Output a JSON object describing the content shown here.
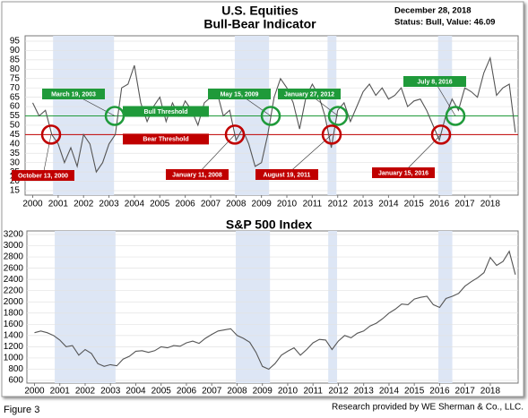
{
  "figure_label": "Figure 3",
  "credit": "Research provided by WE Sherman & Co., LLC.",
  "chart_data": [
    {
      "type": "line",
      "title": "U.S. Equities",
      "subtitle": "Bull-Bear Indicator",
      "date_text": "December 28, 2018",
      "status_text": "Status: Bull, Value: 46.09",
      "x": [
        2000,
        2000.25,
        2000.5,
        2000.75,
        2001,
        2001.25,
        2001.5,
        2001.75,
        2002,
        2002.25,
        2002.5,
        2002.75,
        2003,
        2003.25,
        2003.5,
        2003.75,
        2004,
        2004.25,
        2004.5,
        2004.75,
        2005,
        2005.25,
        2005.5,
        2005.75,
        2006,
        2006.25,
        2006.5,
        2006.75,
        2007,
        2007.25,
        2007.5,
        2007.75,
        2008,
        2008.25,
        2008.5,
        2008.75,
        2009,
        2009.25,
        2009.5,
        2009.75,
        2010,
        2010.25,
        2010.5,
        2010.75,
        2011,
        2011.25,
        2011.5,
        2011.75,
        2012,
        2012.25,
        2012.5,
        2012.75,
        2013,
        2013.25,
        2013.5,
        2013.75,
        2014,
        2014.25,
        2014.5,
        2014.75,
        2015,
        2015.25,
        2015.5,
        2015.75,
        2016,
        2016.25,
        2016.5,
        2016.75,
        2017,
        2017.25,
        2017.5,
        2017.75,
        2018,
        2018.25,
        2018.5,
        2018.75,
        2018.99
      ],
      "values": [
        62,
        55,
        58,
        45,
        40,
        30,
        38,
        28,
        45,
        40,
        25,
        30,
        40,
        45,
        70,
        72,
        82,
        62,
        52,
        60,
        65,
        52,
        62,
        55,
        63,
        58,
        50,
        62,
        65,
        68,
        55,
        58,
        42,
        48,
        40,
        28,
        30,
        45,
        65,
        75,
        70,
        62,
        48,
        65,
        72,
        66,
        55,
        38,
        58,
        62,
        52,
        60,
        68,
        72,
        66,
        70,
        64,
        66,
        70,
        60,
        63,
        64,
        58,
        50,
        42,
        55,
        64,
        58,
        70,
        68,
        65,
        78,
        86,
        66,
        70,
        72,
        46.09
      ],
      "color": "#555555",
      "xlim": [
        1999.7,
        2019.1
      ],
      "xticks": [
        2000,
        2001,
        2002,
        2003,
        2004,
        2005,
        2006,
        2007,
        2008,
        2009,
        2010,
        2011,
        2012,
        2013,
        2014,
        2015,
        2016,
        2017,
        2018
      ],
      "ylim": [
        15,
        95
      ],
      "yticks": [
        15,
        20,
        25,
        30,
        35,
        40,
        45,
        50,
        55,
        60,
        65,
        70,
        75,
        80,
        85,
        90,
        95
      ],
      "grid": true,
      "shaded_periods": [
        [
          2000.8,
          2003.2
        ],
        [
          2007.95,
          2009.3
        ],
        [
          2011.6,
          2011.95
        ],
        [
          2015.95,
          2016.5
        ]
      ],
      "thresholds": [
        {
          "label": "Bull Threshold",
          "value": 55,
          "color": "#1f9a3a"
        },
        {
          "label": "Bear Threshold",
          "value": 45,
          "color": "#c00000"
        }
      ],
      "annotations": [
        {
          "label": "March 19, 2003",
          "color": "#1f9a3a"
        },
        {
          "label": "May 15, 2009",
          "color": "#1f9a3a"
        },
        {
          "label": "January 27, 2012",
          "color": "#1f9a3a"
        },
        {
          "label": "July 8, 2016",
          "color": "#1f9a3a"
        },
        {
          "label": "October 13, 2000",
          "color": "#c00000"
        },
        {
          "label": "January 11, 2008",
          "color": "#c00000"
        },
        {
          "label": "August 19, 2011",
          "color": "#c00000"
        },
        {
          "label": "January 15, 2016",
          "color": "#c00000"
        }
      ]
    },
    {
      "type": "line",
      "title": "S&P 500 Index",
      "x": [
        2000,
        2000.25,
        2000.5,
        2000.75,
        2001,
        2001.25,
        2001.5,
        2001.75,
        2002,
        2002.25,
        2002.5,
        2002.75,
        2003,
        2003.25,
        2003.5,
        2003.75,
        2004,
        2004.25,
        2004.5,
        2004.75,
        2005,
        2005.25,
        2005.5,
        2005.75,
        2006,
        2006.25,
        2006.5,
        2006.75,
        2007,
        2007.25,
        2007.5,
        2007.75,
        2008,
        2008.25,
        2008.5,
        2008.75,
        2009,
        2009.25,
        2009.5,
        2009.75,
        2010,
        2010.25,
        2010.5,
        2010.75,
        2011,
        2011.25,
        2011.5,
        2011.75,
        2012,
        2012.25,
        2012.5,
        2012.75,
        2013,
        2013.25,
        2013.5,
        2013.75,
        2014,
        2014.25,
        2014.5,
        2014.75,
        2015,
        2015.25,
        2015.5,
        2015.75,
        2016,
        2016.25,
        2016.5,
        2016.75,
        2017,
        2017.25,
        2017.5,
        2017.75,
        2018,
        2018.25,
        2018.5,
        2018.75,
        2018.99
      ],
      "values": [
        1450,
        1480,
        1450,
        1400,
        1320,
        1200,
        1220,
        1050,
        1150,
        1080,
        900,
        850,
        880,
        860,
        980,
        1030,
        1120,
        1130,
        1100,
        1130,
        1200,
        1180,
        1220,
        1210,
        1270,
        1300,
        1260,
        1350,
        1420,
        1480,
        1500,
        1520,
        1400,
        1350,
        1280,
        1100,
        850,
        800,
        900,
        1050,
        1120,
        1180,
        1050,
        1150,
        1270,
        1330,
        1320,
        1150,
        1300,
        1400,
        1360,
        1440,
        1480,
        1570,
        1620,
        1700,
        1800,
        1870,
        1960,
        1950,
        2050,
        2080,
        2100,
        1950,
        1900,
        2060,
        2100,
        2150,
        2280,
        2360,
        2430,
        2520,
        2790,
        2650,
        2720,
        2900,
        2485
      ],
      "color": "#555555",
      "xlim": [
        1999.7,
        2019.1
      ],
      "xticks": [
        2000,
        2001,
        2002,
        2003,
        2004,
        2005,
        2006,
        2007,
        2008,
        2009,
        2010,
        2011,
        2012,
        2013,
        2014,
        2015,
        2016,
        2017,
        2018
      ],
      "ylim": [
        600,
        3200
      ],
      "yticks": [
        600,
        800,
        1000,
        1200,
        1400,
        1600,
        1800,
        2000,
        2200,
        2400,
        2600,
        2800,
        3000,
        3200
      ],
      "grid": true,
      "shaded_periods": [
        [
          2000.8,
          2003.2
        ],
        [
          2007.95,
          2009.3
        ],
        [
          2011.6,
          2011.95
        ],
        [
          2015.95,
          2016.5
        ]
      ]
    }
  ]
}
